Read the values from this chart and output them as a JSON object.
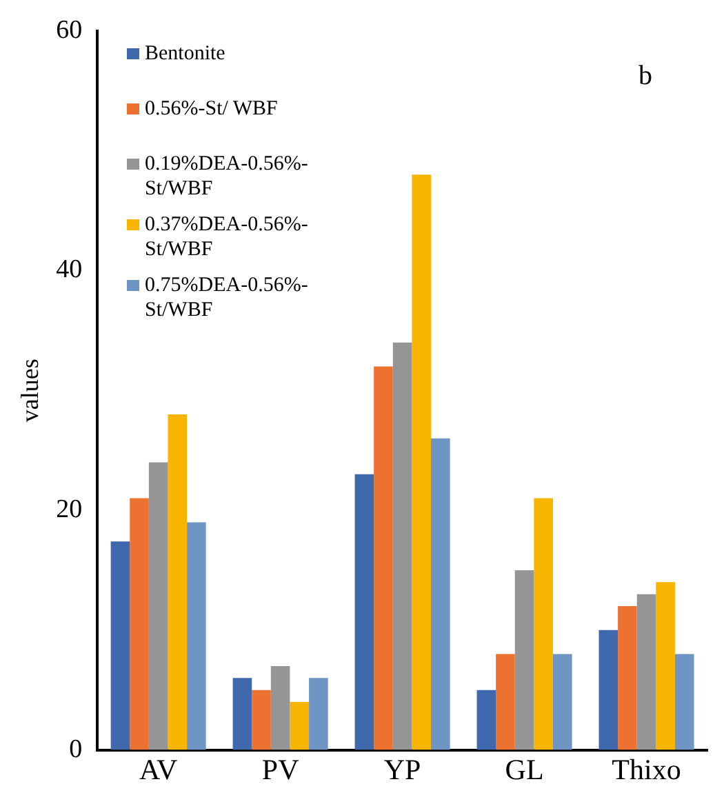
{
  "chart_data": {
    "type": "bar",
    "ylabel": "values",
    "categories": [
      "AV",
      "PV",
      "YP",
      "GL",
      "Thixo"
    ],
    "series": [
      {
        "name": "Bentonite",
        "color": "#3f68ad",
        "values": [
          17.4,
          6,
          23,
          5,
          10
        ]
      },
      {
        "name": "0.56%-St/ WBF",
        "color": "#ed7130",
        "values": [
          21,
          5,
          32,
          8,
          12
        ]
      },
      {
        "name": "0.19%DEA-0.56%-St/WBF",
        "color": "#959595",
        "values": [
          24,
          7,
          34,
          15,
          13
        ]
      },
      {
        "name": "0.37%DEA-0.56%-St/WBF",
        "color": "#f7b500",
        "values": [
          28,
          4,
          48,
          21,
          14
        ]
      },
      {
        "name": "0.75%DEA-0.56%-St/WBF",
        "color": "#6f95c4",
        "values": [
          19,
          6,
          26,
          8,
          8
        ]
      }
    ],
    "ylim": [
      0,
      60
    ],
    "yticks": [
      0,
      20,
      40,
      60
    ],
    "grid": false,
    "legend": "top left",
    "annotations": [
      "b"
    ]
  }
}
